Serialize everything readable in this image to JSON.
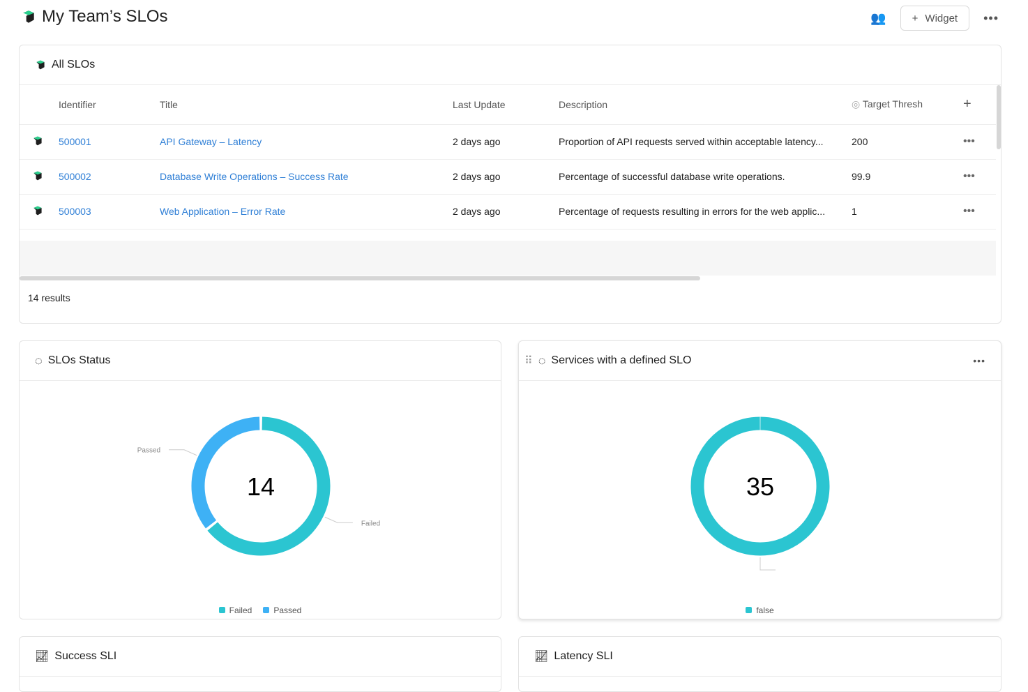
{
  "header": {
    "title": "My Team’s SLOs",
    "widget_label": "Widget",
    "more": "•••"
  },
  "all_slos": {
    "title": "All SLOs",
    "columns": [
      "Identifier",
      "Title",
      "Last Update",
      "Description",
      "Target Thresh"
    ],
    "rows": [
      {
        "id": "500001",
        "title": "API Gateway – Latency",
        "updated": "2 days ago",
        "description": "Proportion of API requests served within acceptable latency...",
        "target": "200"
      },
      {
        "id": "500002",
        "title": "Database Write Operations – Success Rate",
        "updated": "2 days ago",
        "description": "Percentage of successful database write operations.",
        "target": "99.9"
      },
      {
        "id": "500003",
        "title": "Web Application – Error Rate",
        "updated": "2 days ago",
        "description": "Percentage of requests resulting in errors for the web applic...",
        "target": "1"
      }
    ],
    "results": "14 results"
  },
  "chart_data": [
    {
      "type": "pie",
      "title": "SLOs Status",
      "total_label": "14",
      "categories": [
        "Failed",
        "Passed"
      ],
      "values": [
        9,
        5
      ],
      "colors": [
        "#2bc5d1",
        "#3eb1f5"
      ]
    },
    {
      "type": "pie",
      "title": "Services with a defined SLO",
      "total_label": "35",
      "categories": [
        "false"
      ],
      "values": [
        35
      ],
      "colors": [
        "#2bc5d1"
      ]
    }
  ],
  "widgets": {
    "success": "Success SLI",
    "latency": "Latency SLI"
  }
}
